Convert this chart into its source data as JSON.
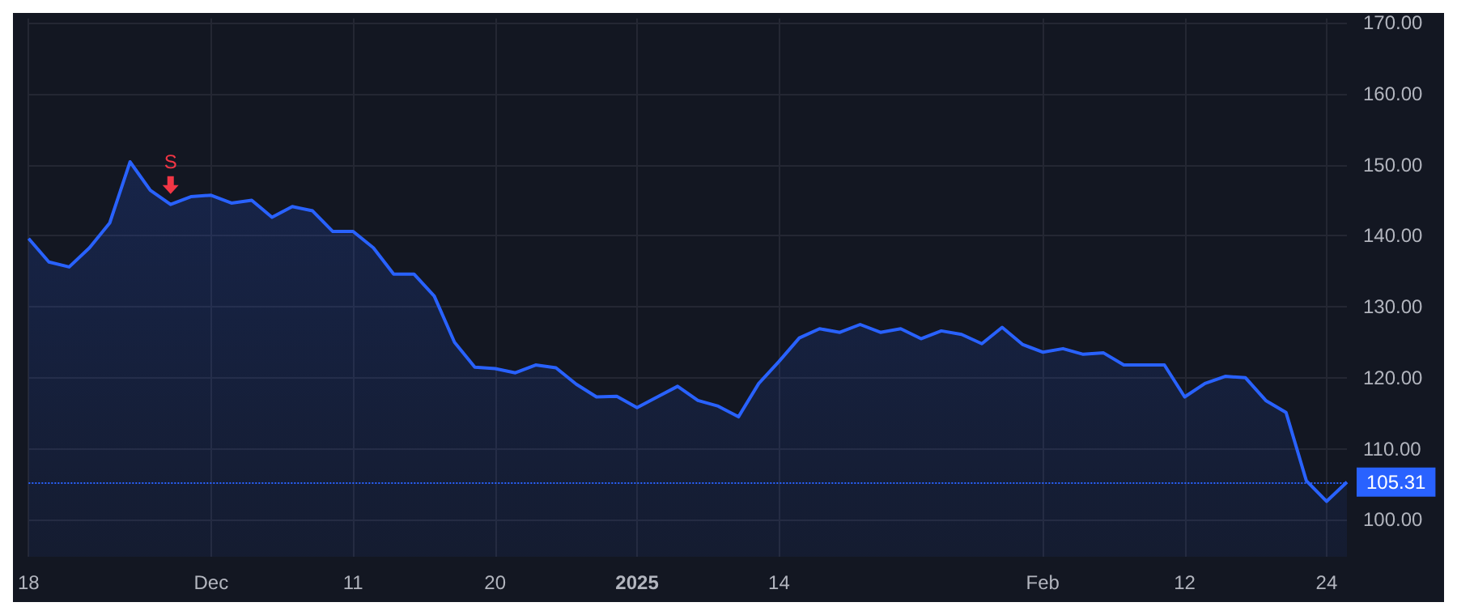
{
  "chart_data": {
    "type": "area",
    "categories": [
      "18",
      null,
      null,
      null,
      null,
      null,
      null,
      null,
      null,
      "Dec",
      null,
      null,
      null,
      null,
      null,
      null,
      "11",
      null,
      null,
      null,
      null,
      null,
      null,
      "20",
      null,
      null,
      null,
      null,
      null,
      null,
      "2025",
      null,
      null,
      null,
      null,
      null,
      null,
      "14",
      null,
      null,
      null,
      null,
      null,
      null,
      null,
      null,
      null,
      null,
      null,
      null,
      "Feb",
      null,
      null,
      null,
      null,
      null,
      null,
      "12",
      null,
      null,
      null,
      null,
      null,
      null,
      "24",
      null
    ],
    "series": [
      {
        "color": "#2962ff",
        "values": [
          139.6,
          136.3,
          135.6,
          138.3,
          141.8,
          150.4,
          146.4,
          144.4,
          145.5,
          145.7,
          144.6,
          145.0,
          142.6,
          144.1,
          143.5,
          140.6,
          140.6,
          138.3,
          134.6,
          134.6,
          131.5,
          125.0,
          121.5,
          121.3,
          120.7,
          121.8,
          121.4,
          119.1,
          117.3,
          117.4,
          115.8,
          117.3,
          118.8,
          116.8,
          116.0,
          114.5,
          119.2,
          122.3,
          125.6,
          126.9,
          126.4,
          127.5,
          126.4,
          126.9,
          125.5,
          126.6,
          126.1,
          124.8,
          127.1,
          124.7,
          123.6,
          124.1,
          123.3,
          123.5,
          121.8,
          121.8,
          121.8,
          117.3,
          119.2,
          120.2,
          120.0,
          116.8,
          115.1,
          105.5,
          102.6,
          105.31
        ]
      }
    ],
    "ylim": [
      94.8,
      170.6
    ],
    "yticks": [
      {
        "value": 100,
        "label": "100.00"
      },
      {
        "value": 110,
        "label": "110.00"
      },
      {
        "value": 120,
        "label": "120.00"
      },
      {
        "value": 130,
        "label": "130.00"
      },
      {
        "value": 140,
        "label": "140.00"
      },
      {
        "value": 150,
        "label": "150.00"
      },
      {
        "value": 160,
        "label": "160.00"
      },
      {
        "value": 170,
        "label": "170.00"
      }
    ],
    "ref_lines": [
      {
        "axis": "y",
        "value": 105.31,
        "label": "105.31",
        "color": "#2962ff",
        "line_style": "dotted"
      }
    ],
    "annotations": [
      {
        "text": "S",
        "y": 144.4
      }
    ],
    "grid": true,
    "marker": "none"
  }
}
